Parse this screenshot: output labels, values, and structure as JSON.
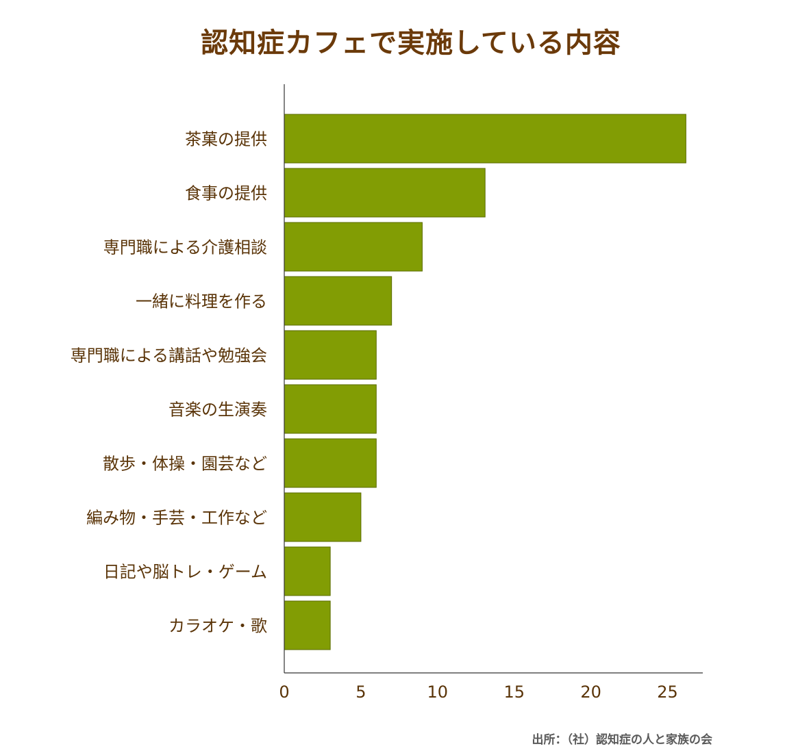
{
  "chart_data": {
    "type": "bar",
    "orientation": "horizontal",
    "title": "認知症カフェで実施している内容",
    "categories": [
      "茶菓の提供",
      "食事の提供",
      "専門職による介護相談",
      "一緒に料理を作る",
      "専門職による講話や勉強会",
      "音楽の生演奏",
      "散歩・体操・園芸など",
      "編み物・手芸・工作など",
      "日記や脳トレ・ゲーム",
      "カラオケ・歌"
    ],
    "values": [
      26.2,
      13.1,
      9.0,
      7.0,
      6.0,
      6.0,
      6.0,
      5.0,
      3.0,
      3.0
    ],
    "xlim": [
      0,
      27.3
    ],
    "xticks": [
      0,
      5,
      10,
      15,
      20,
      25
    ],
    "xlabel": "",
    "ylabel": "",
    "grid": false,
    "legend": "none",
    "bar_color": "#829d04",
    "bar_edge_color": "#5a6b00",
    "title_color": "#6b3a0a",
    "label_color": "#5a3408"
  },
  "source": "出所：（社）認知症の人と家族の会"
}
